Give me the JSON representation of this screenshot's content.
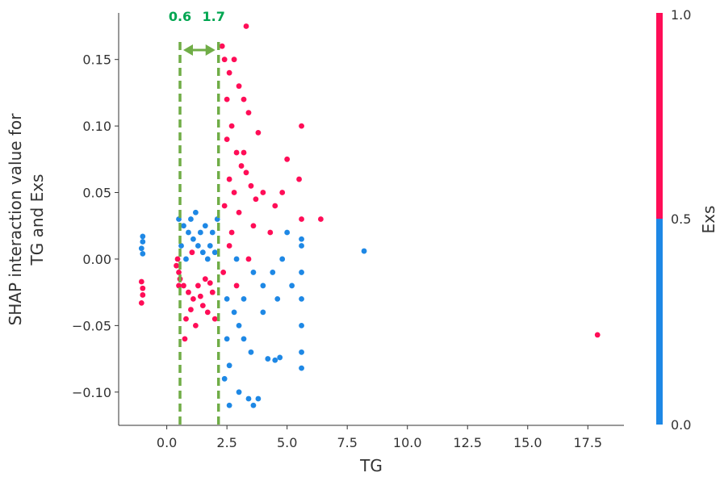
{
  "chart_data": {
    "type": "scatter",
    "xlabel": "TG",
    "ylabel_lines": [
      "SHAP interaction value for",
      "TG and Exs"
    ],
    "xlim": [
      -2,
      19
    ],
    "ylim": [
      -0.125,
      0.185
    ],
    "x_ticks": [
      0.0,
      2.5,
      5.0,
      7.5,
      10.0,
      12.5,
      15.0,
      17.5
    ],
    "x_tick_labels": [
      "0.0",
      "2.5",
      "5.0",
      "7.5",
      "10.0",
      "12.5",
      "15.0",
      "17.5"
    ],
    "y_ticks": [
      -0.1,
      -0.05,
      0.0,
      0.05,
      0.1,
      0.15
    ],
    "y_tick_labels": [
      "−0.10",
      "−0.05",
      "0.00",
      "0.05",
      "0.10",
      "0.15"
    ],
    "grid": false,
    "colorbar": {
      "label": "Exs",
      "tick_labels": [
        "0.0",
        "0.5",
        "1.0"
      ],
      "low_color": "#1e88e5",
      "high_color": "#ff0d57"
    },
    "colors": {
      "high": "#ff0d57",
      "low": "#1e88e5",
      "annotation": "#00a651",
      "marker_line": "#70ad47"
    },
    "annotations": {
      "lines_x": [
        0.55,
        2.15
      ],
      "labels": [
        "0.6",
        "1.7"
      ],
      "arrow": "double-headed"
    },
    "series": [
      {
        "color_value": 1,
        "points": [
          [
            -1.05,
            -0.017
          ],
          [
            -1.0,
            -0.022
          ],
          [
            -1.0,
            -0.027
          ],
          [
            -1.05,
            -0.033
          ],
          [
            0.4,
            -0.005
          ],
          [
            0.45,
            0.0
          ],
          [
            0.5,
            -0.01
          ],
          [
            0.55,
            -0.015
          ],
          [
            0.5,
            -0.02
          ],
          [
            0.7,
            -0.02
          ],
          [
            0.9,
            -0.025
          ],
          [
            1.1,
            -0.03
          ],
          [
            1.3,
            -0.02
          ],
          [
            1.5,
            -0.035
          ],
          [
            1.7,
            -0.04
          ],
          [
            1.9,
            -0.025
          ],
          [
            0.8,
            -0.045
          ],
          [
            1.2,
            -0.05
          ],
          [
            1.6,
            -0.015
          ],
          [
            2.0,
            -0.045
          ],
          [
            1.0,
            -0.038
          ],
          [
            1.4,
            -0.028
          ],
          [
            1.8,
            -0.018
          ],
          [
            0.75,
            -0.06
          ],
          [
            1.05,
            0.005
          ],
          [
            2.3,
            0.16
          ],
          [
            2.4,
            0.15
          ],
          [
            2.6,
            0.14
          ],
          [
            2.8,
            0.15
          ],
          [
            3.0,
            0.13
          ],
          [
            3.2,
            0.12
          ],
          [
            3.4,
            0.11
          ],
          [
            3.3,
            0.175
          ],
          [
            2.5,
            0.12
          ],
          [
            2.7,
            0.1
          ],
          [
            3.8,
            0.095
          ],
          [
            2.9,
            0.08
          ],
          [
            3.1,
            0.07
          ],
          [
            2.6,
            0.06
          ],
          [
            2.8,
            0.05
          ],
          [
            3.3,
            0.065
          ],
          [
            3.5,
            0.055
          ],
          [
            3.7,
            0.045
          ],
          [
            2.4,
            0.04
          ],
          [
            3.0,
            0.035
          ],
          [
            3.6,
            0.025
          ],
          [
            4.0,
            0.05
          ],
          [
            4.5,
            0.04
          ],
          [
            5.0,
            0.075
          ],
          [
            5.5,
            0.06
          ],
          [
            5.6,
            0.1
          ],
          [
            5.6,
            0.03
          ],
          [
            6.4,
            0.03
          ],
          [
            2.5,
            0.09
          ],
          [
            3.2,
            0.08
          ],
          [
            4.8,
            0.05
          ],
          [
            4.3,
            0.02
          ],
          [
            2.6,
            0.01
          ],
          [
            2.35,
            -0.01
          ],
          [
            2.9,
            -0.02
          ],
          [
            3.4,
            0.0
          ],
          [
            2.7,
            0.02
          ],
          [
            17.9,
            -0.057
          ]
        ]
      },
      {
        "color_value": 0,
        "points": [
          [
            -1.0,
            0.017
          ],
          [
            -1.0,
            0.013
          ],
          [
            -1.05,
            0.008
          ],
          [
            -1.0,
            0.004
          ],
          [
            0.5,
            0.03
          ],
          [
            0.7,
            0.025
          ],
          [
            0.9,
            0.02
          ],
          [
            1.1,
            0.015
          ],
          [
            1.3,
            0.01
          ],
          [
            1.5,
            0.005
          ],
          [
            1.7,
            0.0
          ],
          [
            1.9,
            0.02
          ],
          [
            2.1,
            0.03
          ],
          [
            0.6,
            0.01
          ],
          [
            0.8,
            0.0
          ],
          [
            1.0,
            0.03
          ],
          [
            1.2,
            0.035
          ],
          [
            1.4,
            0.02
          ],
          [
            1.6,
            0.025
          ],
          [
            1.8,
            0.01
          ],
          [
            2.0,
            0.005
          ],
          [
            2.5,
            -0.03
          ],
          [
            2.8,
            -0.04
          ],
          [
            3.0,
            -0.05
          ],
          [
            3.2,
            -0.06
          ],
          [
            3.5,
            -0.07
          ],
          [
            2.6,
            -0.08
          ],
          [
            2.4,
            -0.09
          ],
          [
            2.6,
            -0.11
          ],
          [
            3.0,
            -0.1
          ],
          [
            3.4,
            -0.105
          ],
          [
            3.6,
            -0.11
          ],
          [
            3.8,
            -0.105
          ],
          [
            2.5,
            -0.06
          ],
          [
            4.0,
            -0.04
          ],
          [
            4.2,
            -0.075
          ],
          [
            4.5,
            -0.076
          ],
          [
            4.7,
            -0.074
          ],
          [
            4.0,
            -0.02
          ],
          [
            4.4,
            -0.01
          ],
          [
            4.8,
            0.0
          ],
          [
            5.0,
            0.02
          ],
          [
            4.6,
            -0.03
          ],
          [
            5.2,
            -0.02
          ],
          [
            5.6,
            -0.01
          ],
          [
            5.6,
            -0.03
          ],
          [
            5.6,
            -0.05
          ],
          [
            5.6,
            -0.07
          ],
          [
            5.6,
            -0.082
          ],
          [
            5.6,
            0.01
          ],
          [
            5.6,
            0.015
          ],
          [
            3.2,
            -0.03
          ],
          [
            3.6,
            -0.01
          ],
          [
            2.9,
            0.0
          ],
          [
            8.2,
            0.006
          ]
        ]
      }
    ]
  }
}
